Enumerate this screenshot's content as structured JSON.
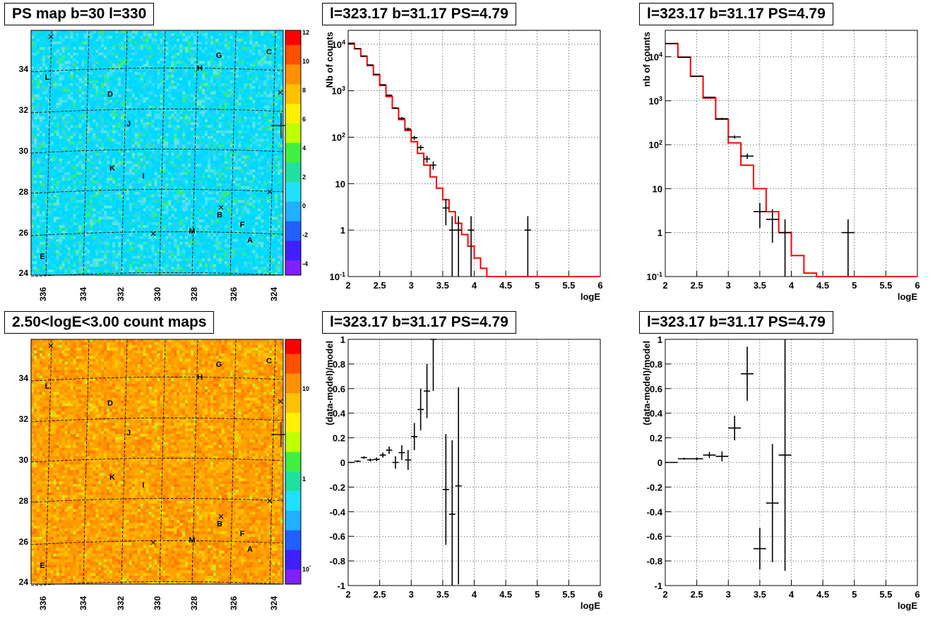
{
  "colors": {
    "fit_line": "#ff0000",
    "data_points": "#000000",
    "grid": "#000000"
  },
  "maps": [
    {
      "title": "PS map b=30 l=330",
      "type": "heatmap",
      "palette": "ps",
      "x_ticks": [
        "336",
        "334",
        "332",
        "330",
        "328",
        "326",
        "324"
      ],
      "y_ticks": [
        "24",
        "26",
        "28",
        "30",
        "32",
        "34"
      ],
      "colorbar_ticks": [
        "12",
        "10",
        "8",
        "6",
        "4",
        "2",
        "0",
        "-2",
        "-4"
      ],
      "sources": [
        "G",
        "C",
        "H",
        "L",
        "D",
        "J",
        "K",
        "I",
        "B",
        "F",
        "M",
        "A",
        "E"
      ]
    },
    {
      "title": "2.50<logE<3.00 count maps",
      "type": "heatmap",
      "palette": "counts",
      "x_ticks": [
        "336",
        "334",
        "332",
        "330",
        "328",
        "326",
        "324"
      ],
      "y_ticks": [
        "24",
        "26",
        "28",
        "30",
        "32",
        "34"
      ],
      "colorbar_ticks": [
        "10",
        "1",
        "10-1"
      ],
      "sources": [
        "G",
        "C",
        "H",
        "L",
        "D",
        "J",
        "K",
        "I",
        "B",
        "F",
        "M",
        "A",
        "E"
      ]
    }
  ],
  "chart_data": [
    {
      "type": "line",
      "title": "l=323.17 b=31.17 PS=4.79",
      "xlabel": "logE",
      "ylabel": "Nb of counts",
      "xlim": [
        2,
        6
      ],
      "ylim": [
        0.1,
        20000
      ],
      "yscale": "log",
      "grid": true,
      "x_ticks": [
        "2",
        "2.5",
        "3",
        "3.5",
        "4",
        "4.5",
        "5",
        "5.5",
        "6"
      ],
      "y_ticks": [
        "10-1",
        "1",
        "10",
        "102",
        "103",
        "104"
      ],
      "model_bin_width": 0.1,
      "model_x": [
        2.0,
        2.1,
        2.2,
        2.3,
        2.4,
        2.5,
        2.6,
        2.7,
        2.8,
        2.9,
        3.0,
        3.1,
        3.2,
        3.3,
        3.4,
        3.5,
        3.6,
        3.7,
        3.8,
        3.9,
        4.0,
        4.1,
        4.2,
        4.3,
        4.4,
        4.5,
        4.6,
        4.7,
        4.8,
        4.9,
        5.0,
        5.1,
        5.2,
        5.3,
        5.4,
        5.5,
        5.6,
        5.7,
        5.8,
        5.9
      ],
      "model_y": [
        10500,
        8000,
        5500,
        3500,
        2200,
        1300,
        750,
        420,
        240,
        140,
        80,
        45,
        25,
        14,
        8,
        4.5,
        2.5,
        1.4,
        0.8,
        0.45,
        0.25,
        0.15,
        0.1,
        0.1,
        0.1,
        0.1,
        0.1,
        0.1,
        0.1,
        0.1,
        0.1,
        0.1,
        0.1,
        0.1,
        0.1,
        0.1,
        0.1,
        0.1,
        0.1,
        0.1
      ],
      "points": [
        {
          "x": 2.05,
          "y": 10500
        },
        {
          "x": 2.15,
          "y": 8100
        },
        {
          "x": 2.25,
          "y": 5600
        },
        {
          "x": 2.35,
          "y": 3600
        },
        {
          "x": 2.45,
          "y": 2250
        },
        {
          "x": 2.55,
          "y": 1350
        },
        {
          "x": 2.65,
          "y": 800
        },
        {
          "x": 2.75,
          "y": 425
        },
        {
          "x": 2.85,
          "y": 255
        },
        {
          "x": 2.95,
          "y": 150
        },
        {
          "x": 3.05,
          "y": 97
        },
        {
          "x": 3.15,
          "y": 60
        },
        {
          "x": 3.25,
          "y": 34
        },
        {
          "x": 3.35,
          "y": 25
        },
        {
          "x": 3.55,
          "y": 3
        },
        {
          "x": 3.65,
          "y": 1
        },
        {
          "x": 3.75,
          "y": 1
        },
        {
          "x": 3.95,
          "y": 1
        },
        {
          "x": 4.85,
          "y": 1
        }
      ]
    },
    {
      "type": "line",
      "title": "l=323.17 b=31.17 PS=4.79",
      "xlabel": "logE",
      "ylabel": "nb of counts",
      "xlim": [
        2,
        6
      ],
      "ylim": [
        0.1,
        40000
      ],
      "yscale": "log",
      "grid": true,
      "x_ticks": [
        "2",
        "2.5",
        "3",
        "3.5",
        "4",
        "4.5",
        "5",
        "5.5",
        "6"
      ],
      "y_ticks": [
        "10-1",
        "1",
        "10",
        "102",
        "103",
        "104"
      ],
      "model_bin_width": 0.2,
      "model_x": [
        2.0,
        2.2,
        2.4,
        2.6,
        2.8,
        3.0,
        3.2,
        3.4,
        3.6,
        3.8,
        4.0,
        4.2,
        4.4,
        4.6,
        4.8,
        5.0,
        5.2,
        5.4,
        5.6,
        5.8
      ],
      "model_y": [
        20000,
        9800,
        3600,
        1150,
        380,
        110,
        34,
        10,
        3,
        1,
        0.3,
        0.12,
        0.1,
        0.1,
        0.1,
        0.1,
        0.1,
        0.1,
        0.1,
        0.1
      ],
      "points": [
        {
          "x": 2.1,
          "y": 20000
        },
        {
          "x": 2.3,
          "y": 9800
        },
        {
          "x": 2.5,
          "y": 3600
        },
        {
          "x": 2.7,
          "y": 1200
        },
        {
          "x": 2.9,
          "y": 390
        },
        {
          "x": 3.1,
          "y": 150
        },
        {
          "x": 3.3,
          "y": 55
        },
        {
          "x": 3.5,
          "y": 3
        },
        {
          "x": 3.7,
          "y": 2
        },
        {
          "x": 3.9,
          "y": 1
        },
        {
          "x": 4.9,
          "y": 1
        }
      ]
    },
    {
      "type": "scatter",
      "title": "l=323.17 b=31.17 PS=4.79",
      "xlabel": "logE",
      "ylabel": "(data-model)/model",
      "xlim": [
        2,
        6
      ],
      "ylim": [
        -1,
        1
      ],
      "grid": true,
      "x_ticks": [
        "2",
        "2.5",
        "3",
        "3.5",
        "4",
        "4.5",
        "5",
        "5.5",
        "6"
      ],
      "y_ticks": [
        "-1",
        "-0.8",
        "-0.6",
        "-0.4",
        "-0.2",
        "0",
        "0.2",
        "0.4",
        "0.6",
        "0.8",
        "1"
      ],
      "points": [
        {
          "x": 2.05,
          "y": 0.0,
          "err": 0.005
        },
        {
          "x": 2.15,
          "y": 0.01,
          "err": 0.007
        },
        {
          "x": 2.25,
          "y": 0.04,
          "err": 0.01
        },
        {
          "x": 2.35,
          "y": 0.02,
          "err": 0.012
        },
        {
          "x": 2.45,
          "y": 0.025,
          "err": 0.015
        },
        {
          "x": 2.55,
          "y": 0.06,
          "err": 0.02
        },
        {
          "x": 2.65,
          "y": 0.1,
          "err": 0.03
        },
        {
          "x": 2.75,
          "y": 0.0,
          "err": 0.05
        },
        {
          "x": 2.85,
          "y": 0.08,
          "err": 0.06
        },
        {
          "x": 2.95,
          "y": 0.02,
          "err": 0.08
        },
        {
          "x": 3.05,
          "y": 0.21,
          "err": 0.11
        },
        {
          "x": 3.15,
          "y": 0.43,
          "err": 0.17
        },
        {
          "x": 3.25,
          "y": 0.58,
          "err": 0.22
        },
        {
          "x": 3.35,
          "y": 1.0,
          "err": 0.42
        },
        {
          "x": 3.55,
          "y": -0.22,
          "err": 0.45
        },
        {
          "x": 3.65,
          "y": -0.42,
          "err": 0.6
        },
        {
          "x": 3.75,
          "y": -0.19,
          "err": 0.8
        }
      ]
    },
    {
      "type": "scatter",
      "title": "l=323.17 b=31.17 PS=4.79",
      "xlabel": "logE",
      "ylabel": "(data-model)/model",
      "xlim": [
        2,
        6
      ],
      "ylim": [
        -1,
        1
      ],
      "grid": true,
      "x_ticks": [
        "2",
        "2.5",
        "3",
        "3.5",
        "4",
        "4.5",
        "5",
        "5.5",
        "6"
      ],
      "y_ticks": [
        "-1",
        "-0.8",
        "-0.6",
        "-0.4",
        "-0.2",
        "0",
        "0.2",
        "0.4",
        "0.6",
        "0.8",
        "1"
      ],
      "points": [
        {
          "x": 2.1,
          "y": 0.0,
          "err": 0.004
        },
        {
          "x": 2.3,
          "y": 0.03,
          "err": 0.008
        },
        {
          "x": 2.5,
          "y": 0.03,
          "err": 0.012
        },
        {
          "x": 2.7,
          "y": 0.06,
          "err": 0.025
        },
        {
          "x": 2.9,
          "y": 0.05,
          "err": 0.04
        },
        {
          "x": 3.1,
          "y": 0.28,
          "err": 0.1
        },
        {
          "x": 3.3,
          "y": 0.72,
          "err": 0.22
        },
        {
          "x": 3.5,
          "y": -0.7,
          "err": 0.17
        },
        {
          "x": 3.7,
          "y": -0.33,
          "err": 0.48
        },
        {
          "x": 3.9,
          "y": 0.06,
          "err": 0.94
        }
      ]
    }
  ]
}
